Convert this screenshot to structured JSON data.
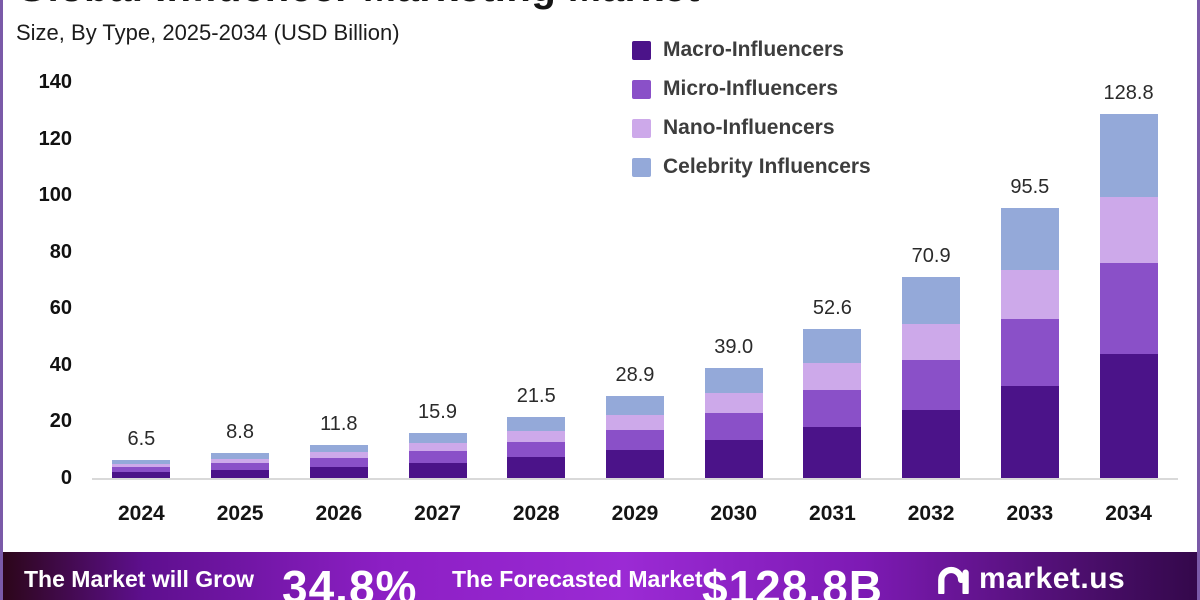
{
  "page": {
    "main_title_cutoff": "Global Influencer Marketing Market",
    "subtitle": "Size, By Type, 2025-2034 (USD Billion)"
  },
  "chart_data": {
    "type": "bar",
    "variant": "stacked",
    "title": "Global Influencer Marketing Market",
    "subtitle": "Size, By Type, 2025-2034 (USD Billion)",
    "xlabel": "",
    "ylabel": "USD Billion",
    "ylim": [
      0,
      140
    ],
    "yticks": [
      0,
      20,
      40,
      60,
      80,
      100,
      120,
      140
    ],
    "grid": false,
    "legend_position": "top-right",
    "categories": [
      "2024",
      "2025",
      "2026",
      "2027",
      "2028",
      "2029",
      "2030",
      "2031",
      "2032",
      "2033",
      "2034"
    ],
    "totals": [
      "6.5",
      "8.8",
      "11.8",
      "15.9",
      "21.5",
      "28.9",
      "39.0",
      "52.6",
      "70.9",
      "95.5",
      "128.8"
    ],
    "series": [
      {
        "name": "Macro-Influencers",
        "color": "#4b1389",
        "values": [
          2.2,
          3.0,
          4.0,
          5.4,
          7.3,
          9.8,
          13.3,
          17.9,
          24.1,
          32.5,
          43.8
        ]
      },
      {
        "name": "Micro-Influencers",
        "color": "#8a50c8",
        "values": [
          1.6,
          2.2,
          3.0,
          4.0,
          5.4,
          7.2,
          9.8,
          13.2,
          17.7,
          23.9,
          32.2
        ]
      },
      {
        "name": "Nano-Influencers",
        "color": "#cda9ea",
        "values": [
          1.2,
          1.6,
          2.1,
          2.9,
          3.9,
          5.2,
          7.0,
          9.5,
          12.8,
          17.2,
          23.2
        ]
      },
      {
        "name": "Celebrity Influencers",
        "color": "#94a9d9",
        "values": [
          1.5,
          2.0,
          2.7,
          3.6,
          4.9,
          6.7,
          8.9,
          12.0,
          16.3,
          21.9,
          29.6
        ]
      }
    ]
  },
  "banner": {
    "growth_label": "The Market will Grow",
    "growth_value": "34.8%",
    "forecast_label": "The Forecasted Market",
    "forecast_value": "$128.8B",
    "brand": "market.us"
  },
  "colors": {
    "banner_center": "#9b2ad4",
    "banner_edge": "#2b0617",
    "axis_line": "#d9d9d9",
    "side_border": "#7a5aa8",
    "text_dark": "#141414"
  }
}
